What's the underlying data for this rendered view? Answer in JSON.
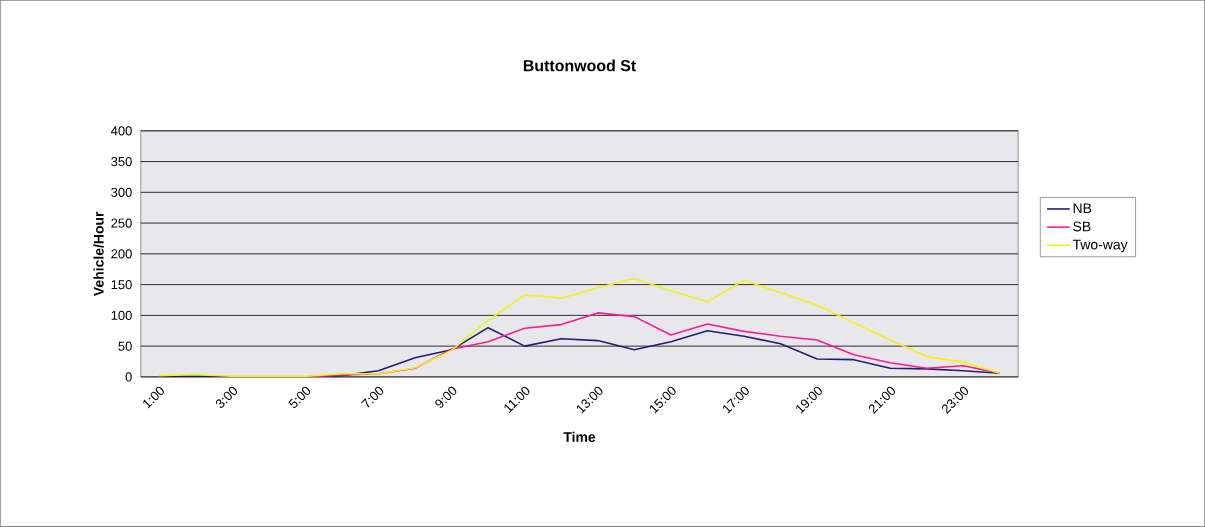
{
  "chart_data": {
    "type": "line",
    "title": "Buttonwood St",
    "xlabel": "Time",
    "ylabel": "Vehicle/Hour",
    "categories": [
      "1:00",
      null,
      "3:00",
      null,
      "5:00",
      null,
      "7:00",
      null,
      "9:00",
      null,
      "11:00",
      null,
      "13:00",
      null,
      "15:00",
      null,
      "17:00",
      null,
      "19:00",
      null,
      "21:00",
      null,
      "23:00",
      null
    ],
    "series": [
      {
        "name": "NB",
        "color": "#1f1f7a",
        "values": [
          1,
          1,
          0,
          0,
          0,
          2,
          10,
          31,
          44,
          80,
          50,
          62,
          59,
          44,
          57,
          75,
          66,
          54,
          29,
          28,
          14,
          13,
          10,
          6
        ]
      },
      {
        "name": "SB",
        "color": "#ff1a8c",
        "values": [
          null,
          null,
          null,
          0,
          0,
          3,
          5,
          14,
          45,
          57,
          79,
          85,
          104,
          98,
          68,
          86,
          74,
          66,
          60,
          36,
          23,
          14,
          18,
          6
        ]
      },
      {
        "name": "Two-way",
        "color": "#f5f01a",
        "values": [
          2,
          4,
          1,
          1,
          1,
          5,
          5,
          15,
          43,
          92,
          133,
          128,
          145,
          160,
          140,
          122,
          157,
          137,
          117,
          88,
          60,
          33,
          24,
          6
        ]
      }
    ],
    "ylim": [
      0,
      400
    ],
    "yticks": [
      0,
      50,
      100,
      150,
      200,
      250,
      300,
      350,
      400
    ],
    "grid": "y",
    "legend": "right",
    "marker": "none",
    "line_style": "solid"
  }
}
